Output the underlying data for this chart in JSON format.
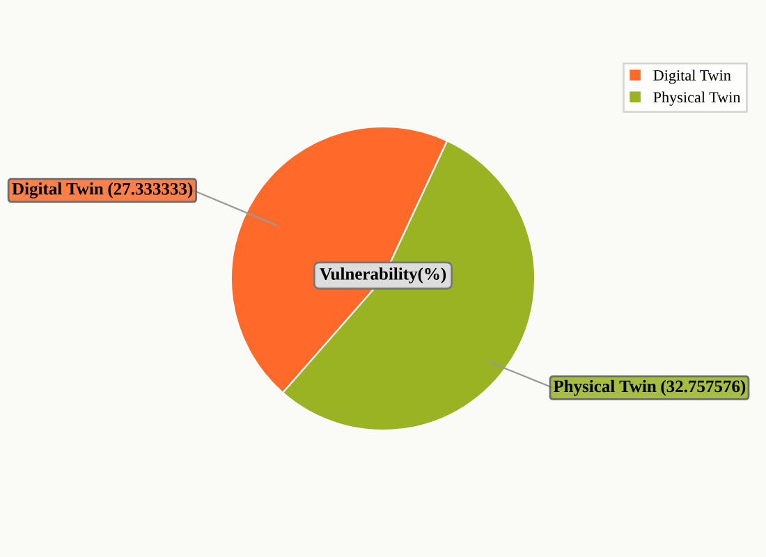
{
  "chart_data": {
    "type": "pie",
    "title": "Vulnerability(%)",
    "categories": [
      "Digital Twin",
      "Physical Twin"
    ],
    "values": [
      27.333333,
      32.757576
    ],
    "colors": [
      "#ff6a2a",
      "#99b322"
    ],
    "value_labels": [
      "(27.333333)",
      "(32.757576)"
    ],
    "legend": "top right"
  }
}
